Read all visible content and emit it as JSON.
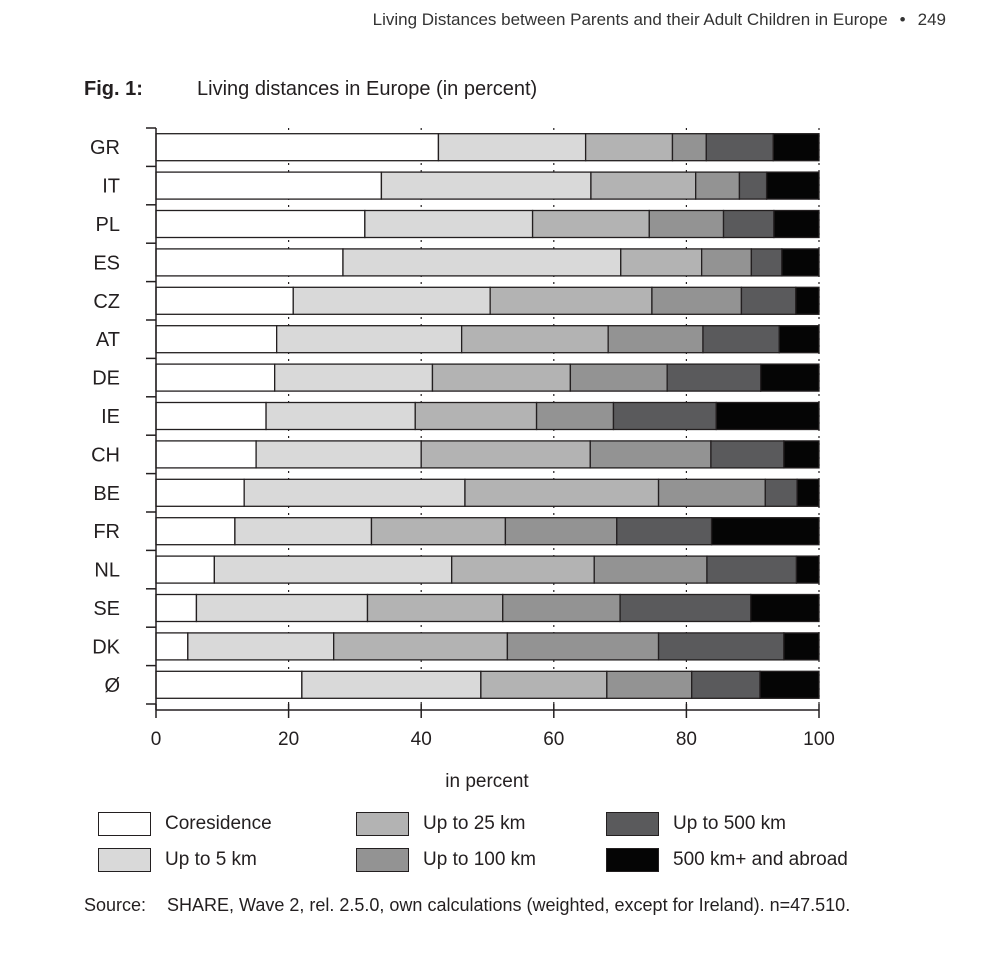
{
  "running_head": {
    "title": "Living Distances between Parents and their Adult Children in Europe",
    "bullet": "•",
    "page": "249"
  },
  "figure": {
    "label": "Fig. 1:",
    "caption": "Living distances in Europe (in percent)"
  },
  "chart_data": {
    "type": "bar",
    "orientation": "horizontal",
    "stacked": true,
    "categories": [
      "GR",
      "IT",
      "PL",
      "ES",
      "CZ",
      "AT",
      "DE",
      "IE",
      "CH",
      "BE",
      "FR",
      "NL",
      "SE",
      "DK",
      "Ø"
    ],
    "series": [
      {
        "name": "Coresidence",
        "color": "#ffffff",
        "values": [
          42.6,
          34.0,
          31.5,
          28.2,
          20.7,
          18.2,
          17.9,
          16.6,
          15.1,
          13.3,
          11.9,
          8.8,
          6.1,
          4.8,
          22.0
        ]
      },
      {
        "name": "Up to 5 km",
        "color": "#d9d9d9",
        "values": [
          22.2,
          31.6,
          25.3,
          41.9,
          29.7,
          27.9,
          23.8,
          22.5,
          24.9,
          33.3,
          20.6,
          35.8,
          25.8,
          22.0,
          27.0
        ]
      },
      {
        "name": "Up to 25 km",
        "color": "#b3b3b3",
        "values": [
          13.1,
          15.8,
          17.6,
          12.2,
          24.4,
          22.1,
          20.8,
          18.3,
          25.5,
          29.2,
          20.2,
          21.5,
          20.4,
          26.2,
          19.0
        ]
      },
      {
        "name": "Up to 100 km",
        "color": "#939393",
        "values": [
          5.1,
          6.6,
          11.2,
          7.5,
          13.5,
          14.3,
          14.6,
          11.6,
          18.2,
          16.1,
          16.8,
          17.0,
          17.7,
          22.8,
          12.8
        ]
      },
      {
        "name": "Up to 500 km",
        "color": "#5a5a5c",
        "values": [
          10.1,
          4.1,
          7.6,
          4.6,
          8.2,
          11.5,
          14.1,
          15.5,
          11.0,
          4.8,
          14.3,
          13.5,
          19.7,
          18.9,
          10.3
        ]
      },
      {
        "name": "500 km+ and abroad",
        "color": "#050505",
        "values": [
          6.9,
          7.9,
          6.8,
          5.6,
          3.5,
          6.0,
          8.8,
          15.5,
          5.3,
          3.3,
          16.2,
          3.4,
          10.3,
          5.3,
          8.9
        ]
      }
    ],
    "xlim": [
      0,
      100
    ],
    "xticks": [
      0,
      20,
      40,
      60,
      80,
      100
    ],
    "xlabel": "in percent",
    "grid": "dotted vertical at 20, 40, 60, 80",
    "legend_position": "bottom"
  },
  "source": {
    "label": "Source:",
    "text": "SHARE, Wave 2, rel. 2.5.0, own calculations (weighted, except for Ireland). n=47.510."
  }
}
